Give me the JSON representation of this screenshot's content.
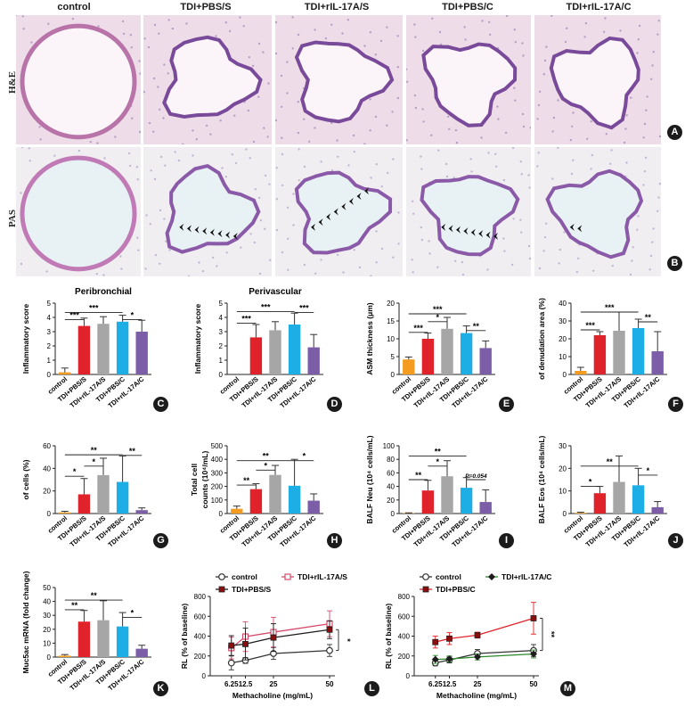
{
  "headers": [
    "control",
    "TDI+PBS/S",
    "TDI+rIL-17A/S",
    "TDI+PBS/C",
    "TDI+rIL-17A/C"
  ],
  "row_labels": [
    "H&E",
    "PAS"
  ],
  "panel_letters": [
    "A",
    "B",
    "C",
    "D",
    "E",
    "F",
    "G",
    "H",
    "I",
    "J",
    "K",
    "L",
    "M"
  ],
  "colors": {
    "control": "#f39c1f",
    "pbs_s": "#e0232a",
    "ril_s": "#a6a6a6",
    "pbs_c": "#1eaee6",
    "ril_c": "#7c5ea8",
    "he_bg": "#eedde8",
    "pas_bg": "#f1eef2"
  },
  "chart_data": [
    {
      "id": "C",
      "type": "bar",
      "title": "Peribronchial",
      "ylabel": "Inflammatory score",
      "ylim": [
        0,
        5
      ],
      "yticks": [
        0,
        1,
        2,
        3,
        4,
        5
      ],
      "categories": [
        "control",
        "TDI+PBS/S",
        "TDI+rIL-17A/S",
        "TDI+PBS/C",
        "TDI+rIL-17A/C"
      ],
      "values": [
        0.15,
        3.4,
        3.55,
        3.7,
        3.0
      ],
      "errors": [
        0.3,
        0.55,
        0.5,
        0.45,
        0.8
      ],
      "sig": [
        {
          "from": 0,
          "to": 1,
          "label": "***",
          "y": 3.85
        },
        {
          "from": 0,
          "to": 3,
          "label": "***",
          "y": 4.35
        },
        {
          "from": 3,
          "to": 4,
          "label": "*",
          "y": 3.85
        }
      ]
    },
    {
      "id": "D",
      "type": "bar",
      "title": "Perivascular",
      "ylabel": "Inflammatory score",
      "ylim": [
        0,
        5
      ],
      "yticks": [
        0,
        1,
        2,
        3,
        4,
        5
      ],
      "categories": [
        "control",
        "TDI+PBS/S",
        "TDI+rIL-17A/S",
        "TDI+PBS/C",
        "TDI+rIL-17A/C"
      ],
      "values": [
        0,
        2.6,
        3.1,
        3.5,
        1.9
      ],
      "errors": [
        0,
        0.9,
        0.6,
        0.8,
        0.9
      ],
      "sig": [
        {
          "from": 0,
          "to": 1,
          "label": "***",
          "y": 3.6
        },
        {
          "from": 0,
          "to": 3,
          "label": "***",
          "y": 4.4
        },
        {
          "from": 3,
          "to": 4,
          "label": "***",
          "y": 4.35
        }
      ]
    },
    {
      "id": "E",
      "type": "bar",
      "title": "",
      "ylabel": "ASM thickness (μm)",
      "ylim": [
        0,
        20
      ],
      "yticks": [
        0,
        5,
        10,
        15,
        20
      ],
      "categories": [
        "control",
        "TDI+PBS/S",
        "TDI+rIL-17A/S",
        "TDI+PBS/C",
        "TDI+rIL-17A/C"
      ],
      "values": [
        4.2,
        10.0,
        12.8,
        11.6,
        7.4
      ],
      "errors": [
        0.7,
        1.6,
        3.2,
        2.0,
        2.0
      ],
      "sig": [
        {
          "from": 0,
          "to": 1,
          "label": "***",
          "y": 11.8
        },
        {
          "from": 0,
          "to": 3,
          "label": "***",
          "y": 17.0
        },
        {
          "from": 1,
          "to": 2,
          "label": "*",
          "y": 14.8
        },
        {
          "from": 3,
          "to": 4,
          "label": "**",
          "y": 12.3
        }
      ]
    },
    {
      "id": "F",
      "type": "bar",
      "title": "",
      "ylabel": "of denudation area (%)",
      "ylim": [
        0,
        40
      ],
      "yticks": [
        0,
        10,
        20,
        30,
        40
      ],
      "categories": [
        "control",
        "TDI+PBS/S",
        "TDI+rIL-17A/S",
        "TDI+PBS/C",
        "TDI+rIL-17A/C"
      ],
      "values": [
        2.0,
        22.0,
        24.5,
        26.0,
        13.0
      ],
      "errors": [
        2.0,
        2.0,
        10.5,
        5.0,
        11.0
      ],
      "sig": [
        {
          "from": 0,
          "to": 1,
          "label": "***",
          "y": 25.0
        },
        {
          "from": 0,
          "to": 3,
          "label": "***",
          "y": 35.0
        },
        {
          "from": 3,
          "to": 4,
          "label": "**",
          "y": 29.5
        }
      ]
    },
    {
      "id": "G",
      "type": "bar",
      "title": "",
      "ylabel": "of cells (%)",
      "ylim": [
        0,
        60
      ],
      "yticks": [
        0,
        20,
        40,
        60
      ],
      "categories": [
        "control",
        "TDI+PBS/S",
        "TDI+rIL-17A/S",
        "TDI+PBS/C",
        "TDI+rIL-17A/C"
      ],
      "values": [
        1.0,
        17.0,
        34.0,
        28.0,
        3.0
      ],
      "errors": [
        1.0,
        14.0,
        15.0,
        23.0,
        2.0
      ],
      "sig": [
        {
          "from": 0,
          "to": 1,
          "label": "*",
          "y": 33.0
        },
        {
          "from": 1,
          "to": 2,
          "label": "*",
          "y": 42.0
        },
        {
          "from": 0,
          "to": 3,
          "label": "**",
          "y": 52.0
        },
        {
          "from": 3,
          "to": 4,
          "label": "**",
          "y": 51.5
        }
      ]
    },
    {
      "id": "H",
      "type": "bar",
      "title": "",
      "ylabel": "Total cell",
      "ylabel2": "counts (10⁴/mL)",
      "ylim": [
        0,
        500
      ],
      "yticks": [
        0,
        100,
        200,
        300,
        400,
        500
      ],
      "categories": [
        "control",
        "TDI+PBS/S",
        "TDI+rIL-17A/S",
        "TDI+PBS/C",
        "TDI+rIL-17A/C"
      ],
      "values": [
        35,
        180,
        285,
        205,
        95
      ],
      "errors": [
        20,
        40,
        70,
        195,
        50
      ],
      "sig": [
        {
          "from": 0,
          "to": 1,
          "label": "**",
          "y": 210
        },
        {
          "from": 1,
          "to": 2,
          "label": "*",
          "y": 320
        },
        {
          "from": 0,
          "to": 3,
          "label": "**",
          "y": 390
        },
        {
          "from": 3,
          "to": 4,
          "label": "*",
          "y": 390
        }
      ]
    },
    {
      "id": "I",
      "type": "bar",
      "title": "",
      "ylabel": "BALF Neu (10⁴ cells/mL)",
      "ylim": [
        0,
        100
      ],
      "yticks": [
        0,
        20,
        40,
        60,
        80,
        100
      ],
      "categories": [
        "control",
        "TDI+PBS/S",
        "TDI+rIL-17A/S",
        "TDI+PBS/C",
        "TDI+rIL-17A/C"
      ],
      "values": [
        0.5,
        34.0,
        55.0,
        38.0,
        17.0
      ],
      "errors": [
        0.5,
        15.0,
        23.0,
        15.0,
        18.0
      ],
      "sig": [
        {
          "from": 0,
          "to": 1,
          "label": "**",
          "y": 50.0
        },
        {
          "from": 1,
          "to": 2,
          "label": "*",
          "y": 70.0
        },
        {
          "from": 0,
          "to": 3,
          "label": "**",
          "y": 85.0
        },
        {
          "from": 3,
          "to": 4,
          "label": "P=0.054",
          "y": 50.0
        }
      ]
    },
    {
      "id": "J",
      "type": "bar",
      "title": "",
      "ylabel": "BALF Eos (10⁴ cells/mL)",
      "ylim": [
        0,
        30
      ],
      "yticks": [
        0,
        10,
        20,
        30
      ],
      "categories": [
        "control",
        "TDI+PBS/S",
        "TDI+rIL-17A/S",
        "TDI+PBS/C",
        "TDI+rIL-17A/C"
      ],
      "values": [
        0.3,
        9.0,
        14.0,
        12.5,
        2.8
      ],
      "errors": [
        0.3,
        3.0,
        11.5,
        7.5,
        2.5
      ],
      "sig": [
        {
          "from": 0,
          "to": 1,
          "label": "*",
          "y": 12.0
        },
        {
          "from": 0,
          "to": 3,
          "label": "**",
          "y": 21.0
        },
        {
          "from": 3,
          "to": 4,
          "label": "*",
          "y": 17.0
        }
      ]
    },
    {
      "id": "K",
      "type": "bar",
      "title": "",
      "ylabel": "Muc5ac mRNA (fold change)",
      "ylim": [
        0,
        50
      ],
      "yticks": [
        0,
        10,
        20,
        30,
        40,
        50
      ],
      "categories": [
        "control",
        "TDI+PBS/S",
        "TDI+rIL-17A/S",
        "TDI+PBS/C",
        "TDI+rIL-17A/C"
      ],
      "values": [
        1.0,
        25.5,
        26.5,
        22.0,
        6.0
      ],
      "errors": [
        0.8,
        8.0,
        14.0,
        10.0,
        2.5
      ],
      "sig": [
        {
          "from": 0,
          "to": 1,
          "label": "**",
          "y": 34.0
        },
        {
          "from": 0,
          "to": 3,
          "label": "**",
          "y": 41.0
        },
        {
          "from": 3,
          "to": 4,
          "label": "*",
          "y": 28.5
        }
      ]
    },
    {
      "id": "L",
      "type": "line",
      "title": "",
      "xlabel": "Methacholine (mg/mL)",
      "ylabel": "RL (% of baseline)",
      "ylim": [
        0,
        800
      ],
      "yticks": [
        0,
        200,
        400,
        600,
        800
      ],
      "x": [
        6.25,
        12.5,
        25,
        50
      ],
      "xticks": [
        "6.25",
        "12.5",
        "25",
        "50"
      ],
      "sig_label": "*",
      "series": [
        {
          "name": "control",
          "values": [
            130,
            155,
            225,
            255
          ],
          "errors": [
            70,
            30,
            60,
            60
          ],
          "color": "#333333",
          "marker": "circle-open"
        },
        {
          "name": "TDI+rIL-17A/S",
          "values": [
            280,
            395,
            440,
            525
          ],
          "errors": [
            110,
            150,
            150,
            130
          ],
          "color": "#d44a6a",
          "marker": "square-open"
        },
        {
          "name": "TDI+PBS/S",
          "values": [
            305,
            320,
            385,
            465
          ],
          "errors": [
            100,
            160,
            140,
            90
          ],
          "color": "#1c1c1c",
          "marker": "square-filled-red"
        }
      ]
    },
    {
      "id": "M",
      "type": "line",
      "title": "",
      "xlabel": "Methacholine (mg/mL)",
      "ylabel": "RL (% of baseline)",
      "ylim": [
        0,
        800
      ],
      "yticks": [
        0,
        200,
        400,
        600,
        800
      ],
      "x": [
        6.25,
        12.5,
        25,
        50
      ],
      "xticks": [
        "6.25",
        "12.5",
        "25",
        "50"
      ],
      "sig_label": "**",
      "series": [
        {
          "name": "control",
          "values": [
            130,
            160,
            225,
            255
          ],
          "errors": [
            30,
            30,
            40,
            60
          ],
          "color": "#333333",
          "marker": "circle-open"
        },
        {
          "name": "TDI+rIL-17A/C",
          "values": [
            165,
            170,
            190,
            220
          ],
          "errors": [
            40,
            30,
            30,
            40
          ],
          "color": "#2a8a2a",
          "marker": "diamond-filled"
        },
        {
          "name": "TDI+PBS/C",
          "values": [
            340,
            375,
            410,
            580
          ],
          "errors": [
            60,
            60,
            30,
            160
          ],
          "color": "#e0232a",
          "marker": "square-filled"
        }
      ]
    }
  ]
}
